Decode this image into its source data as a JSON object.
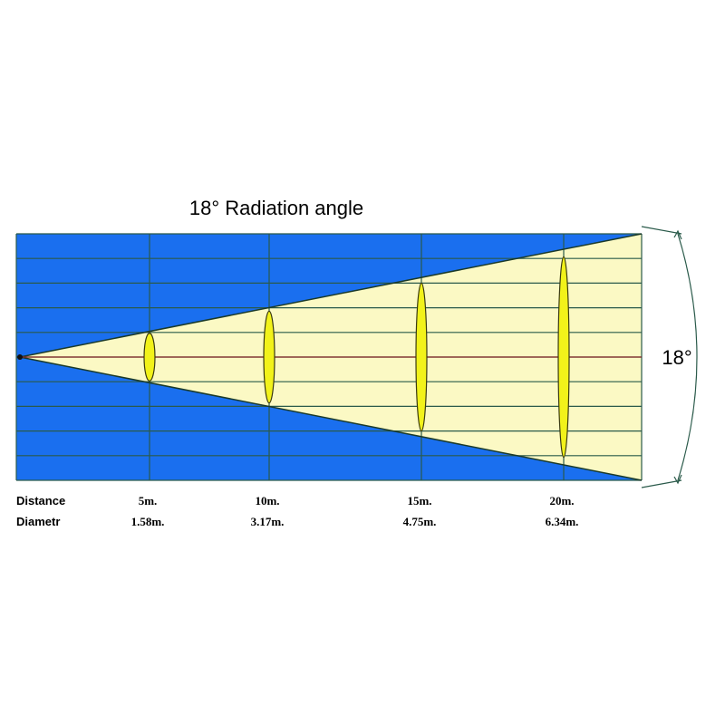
{
  "title": "18°  Radiation angle",
  "angle_label": "18°",
  "row_labels": {
    "distance": "Distance",
    "diameter": "Diametr"
  },
  "columns": [
    {
      "distance": "5m.",
      "diameter": "1.58m."
    },
    {
      "distance": "10m.",
      "diameter": "3.17m."
    },
    {
      "distance": "15m.",
      "diameter": "4.75m."
    },
    {
      "distance": "20m.",
      "diameter": "6.34m."
    }
  ]
}
